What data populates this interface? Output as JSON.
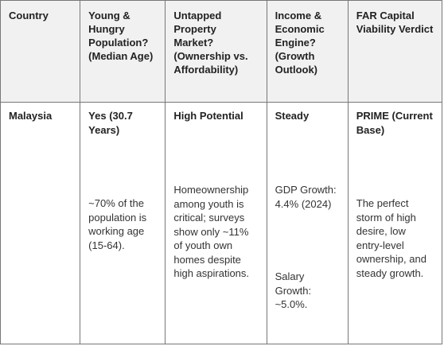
{
  "table": {
    "headers": {
      "country": "Country",
      "young": "Young & Hungry Population? (Median Age)",
      "untapped": "Untapped Property Market? (Ownership vs. Affordability)",
      "income": "Income & Economic Engine? (Growth Outlook)",
      "far": "FAR Capital Viability Verdict"
    },
    "row": {
      "country": "Malaysia",
      "young_verdict": "Yes (30.7 Years)",
      "young_detail": "~70% of the population is working age (15-64).",
      "untapped_verdict": "High Potential",
      "untapped_detail": "Homeownership among youth is critical; surveys show only ~11% of youth own homes despite high aspirations.",
      "income_verdict": "Steady",
      "income_gdp": "GDP Growth: 4.4% (2024)",
      "income_salary": "Salary Growth: ~5.0%.",
      "far_verdict": "PRIME (Current Base)",
      "far_detail": "The perfect storm of high desire, low entry-level ownership, and steady growth."
    }
  }
}
